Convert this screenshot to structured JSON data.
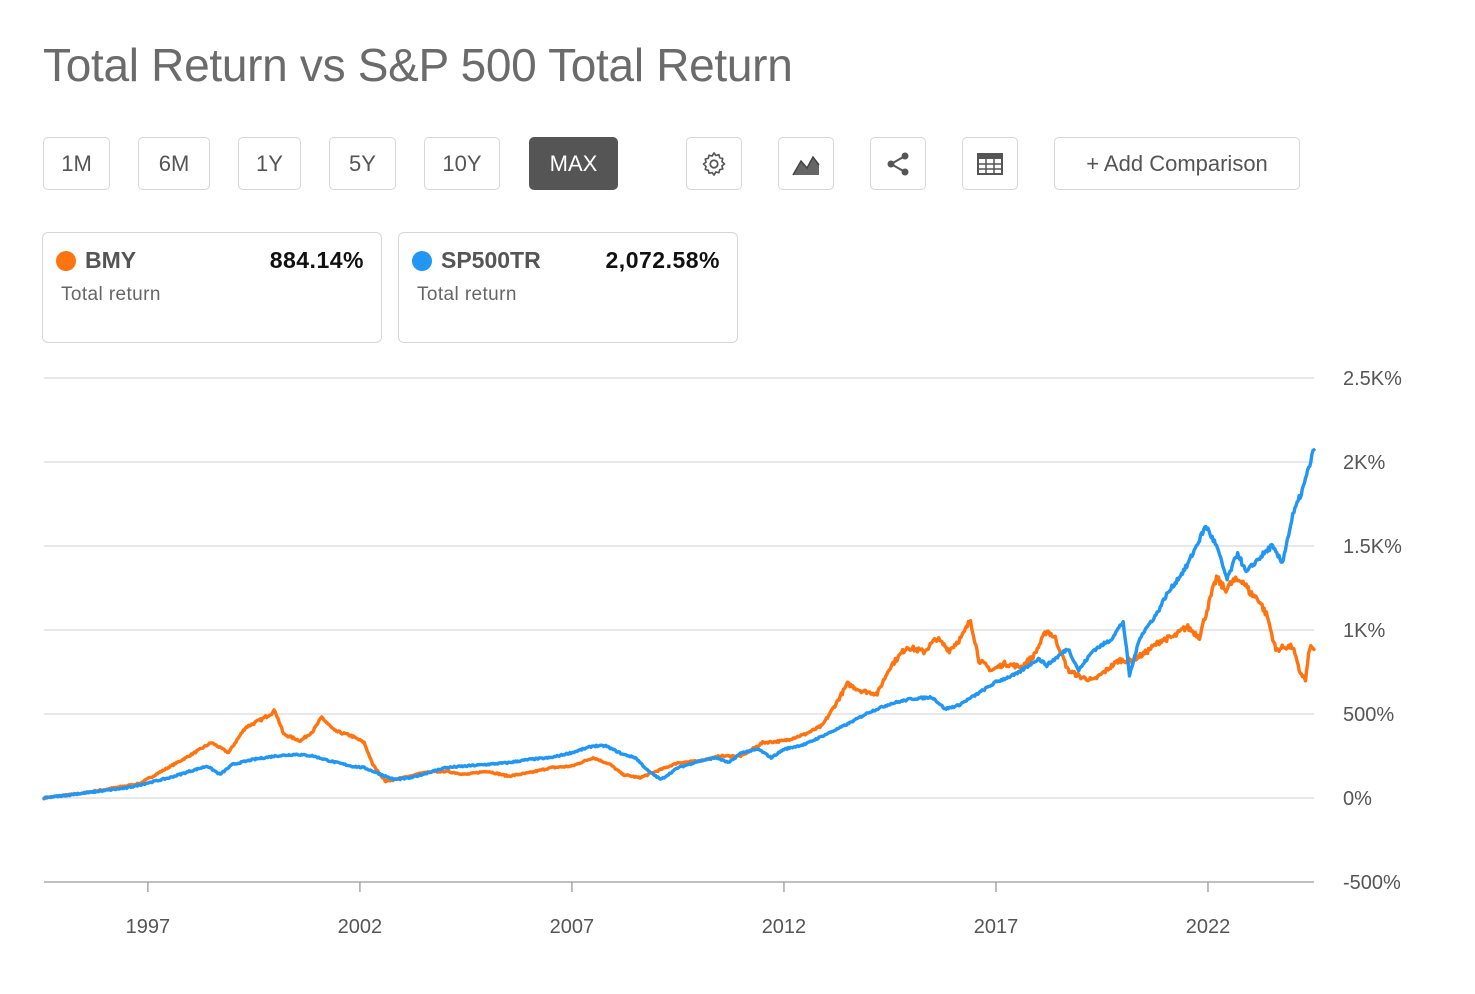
{
  "header": {
    "title": "Total Return vs S&P 500 Total Return"
  },
  "toolbar": {
    "ranges": [
      "1M",
      "6M",
      "1Y",
      "5Y",
      "10Y",
      "MAX"
    ],
    "active_range": "MAX",
    "icons": [
      "gear-icon",
      "area-chart-icon",
      "share-icon",
      "table-icon"
    ],
    "add_comparison_label": "+ Add Comparison"
  },
  "legend_cards": [
    {
      "ticker": "BMY",
      "value": "884.14%",
      "sub": "Total return",
      "color": "#ff7410"
    },
    {
      "ticker": "SP500TR",
      "value": "2,072.58%",
      "sub": "Total return",
      "color": "#2196f3"
    }
  ],
  "chart_data": {
    "type": "line",
    "title": "",
    "xlabel": "",
    "ylabel": "",
    "x_ticks": [
      "1997",
      "2002",
      "2007",
      "2012",
      "2017",
      "2022"
    ],
    "y_ticks": [
      "2.5K%",
      "2K%",
      "1.5K%",
      "1K%",
      "500%",
      "0%",
      "-500%"
    ],
    "ylim": [
      -500,
      2500
    ],
    "xlim": [
      1994.55,
      2024.5
    ],
    "grid": true,
    "series": [
      {
        "name": "BMY",
        "color": "#ff7410",
        "points": [
          [
            1994.55,
            0
          ],
          [
            1995.5,
            30
          ],
          [
            1996.2,
            60
          ],
          [
            1996.8,
            85
          ],
          [
            1997.4,
            170
          ],
          [
            1997.9,
            240
          ],
          [
            1998.5,
            330
          ],
          [
            1998.9,
            270
          ],
          [
            1999.3,
            420
          ],
          [
            1999.7,
            470
          ],
          [
            2000.0,
            520
          ],
          [
            2000.2,
            380
          ],
          [
            2000.6,
            340
          ],
          [
            2000.9,
            400
          ],
          [
            2001.1,
            480
          ],
          [
            2001.4,
            400
          ],
          [
            2001.8,
            370
          ],
          [
            2002.1,
            330
          ],
          [
            2002.3,
            200
          ],
          [
            2002.6,
            100
          ],
          [
            2003.0,
            120
          ],
          [
            2003.5,
            150
          ],
          [
            2004.0,
            160
          ],
          [
            2004.5,
            140
          ],
          [
            2005.0,
            160
          ],
          [
            2005.5,
            130
          ],
          [
            2006.0,
            150
          ],
          [
            2006.5,
            180
          ],
          [
            2007.0,
            190
          ],
          [
            2007.5,
            240
          ],
          [
            2007.9,
            200
          ],
          [
            2008.2,
            140
          ],
          [
            2008.6,
            120
          ],
          [
            2009.0,
            160
          ],
          [
            2009.5,
            210
          ],
          [
            2010.0,
            220
          ],
          [
            2010.5,
            250
          ],
          [
            2011.0,
            250
          ],
          [
            2011.5,
            330
          ],
          [
            2012.0,
            340
          ],
          [
            2012.5,
            380
          ],
          [
            2012.9,
            430
          ],
          [
            2013.2,
            550
          ],
          [
            2013.5,
            680
          ],
          [
            2013.8,
            640
          ],
          [
            2014.2,
            620
          ],
          [
            2014.5,
            780
          ],
          [
            2014.9,
            900
          ],
          [
            2015.3,
            870
          ],
          [
            2015.6,
            950
          ],
          [
            2015.9,
            880
          ],
          [
            2016.2,
            960
          ],
          [
            2016.4,
            1060
          ],
          [
            2016.6,
            820
          ],
          [
            2016.9,
            760
          ],
          [
            2017.2,
            800
          ],
          [
            2017.6,
            780
          ],
          [
            2017.9,
            850
          ],
          [
            2018.2,
            1000
          ],
          [
            2018.4,
            950
          ],
          [
            2018.7,
            760
          ],
          [
            2019.0,
            720
          ],
          [
            2019.3,
            700
          ],
          [
            2019.6,
            760
          ],
          [
            2019.9,
            820
          ],
          [
            2020.2,
            820
          ],
          [
            2020.5,
            860
          ],
          [
            2020.9,
            940
          ],
          [
            2021.2,
            960
          ],
          [
            2021.5,
            1020
          ],
          [
            2021.8,
            960
          ],
          [
            2022.0,
            1140
          ],
          [
            2022.2,
            1310
          ],
          [
            2022.4,
            1240
          ],
          [
            2022.6,
            1290
          ],
          [
            2022.8,
            1300
          ],
          [
            2023.0,
            1220
          ],
          [
            2023.2,
            1180
          ],
          [
            2023.4,
            1080
          ],
          [
            2023.6,
            880
          ],
          [
            2023.8,
            900
          ],
          [
            2024.0,
            900
          ],
          [
            2024.15,
            760
          ],
          [
            2024.3,
            700
          ],
          [
            2024.4,
            900
          ],
          [
            2024.5,
            884
          ]
        ]
      },
      {
        "name": "SP500TR",
        "color": "#2196f3",
        "points": [
          [
            1994.55,
            0
          ],
          [
            1995.5,
            30
          ],
          [
            1996.5,
            60
          ],
          [
            1997.0,
            90
          ],
          [
            1997.5,
            120
          ],
          [
            1998.0,
            160
          ],
          [
            1998.4,
            190
          ],
          [
            1998.7,
            140
          ],
          [
            1999.0,
            200
          ],
          [
            1999.5,
            230
          ],
          [
            2000.0,
            250
          ],
          [
            2000.5,
            260
          ],
          [
            2000.9,
            250
          ],
          [
            2001.3,
            220
          ],
          [
            2001.8,
            190
          ],
          [
            2002.1,
            180
          ],
          [
            2002.5,
            140
          ],
          [
            2002.8,
            110
          ],
          [
            2003.2,
            120
          ],
          [
            2003.6,
            150
          ],
          [
            2004.0,
            180
          ],
          [
            2004.5,
            190
          ],
          [
            2005.0,
            200
          ],
          [
            2005.5,
            210
          ],
          [
            2006.0,
            230
          ],
          [
            2006.5,
            240
          ],
          [
            2007.0,
            270
          ],
          [
            2007.5,
            310
          ],
          [
            2007.8,
            310
          ],
          [
            2008.2,
            260
          ],
          [
            2008.5,
            240
          ],
          [
            2008.8,
            160
          ],
          [
            2009.1,
            110
          ],
          [
            2009.5,
            180
          ],
          [
            2010.0,
            220
          ],
          [
            2010.4,
            240
          ],
          [
            2010.7,
            210
          ],
          [
            2011.0,
            270
          ],
          [
            2011.4,
            290
          ],
          [
            2011.7,
            240
          ],
          [
            2012.0,
            290
          ],
          [
            2012.5,
            320
          ],
          [
            2013.0,
            380
          ],
          [
            2013.5,
            440
          ],
          [
            2014.0,
            510
          ],
          [
            2014.5,
            560
          ],
          [
            2015.0,
            590
          ],
          [
            2015.5,
            600
          ],
          [
            2015.8,
            530
          ],
          [
            2016.1,
            550
          ],
          [
            2016.5,
            610
          ],
          [
            2017.0,
            690
          ],
          [
            2017.5,
            740
          ],
          [
            2018.0,
            830
          ],
          [
            2018.2,
            790
          ],
          [
            2018.7,
            890
          ],
          [
            2018.95,
            760
          ],
          [
            2019.3,
            880
          ],
          [
            2019.7,
            940
          ],
          [
            2020.0,
            1050
          ],
          [
            2020.15,
            730
          ],
          [
            2020.4,
            960
          ],
          [
            2020.8,
            1100
          ],
          [
            2021.0,
            1200
          ],
          [
            2021.5,
            1380
          ],
          [
            2021.95,
            1620
          ],
          [
            2022.2,
            1500
          ],
          [
            2022.45,
            1300
          ],
          [
            2022.7,
            1460
          ],
          [
            2022.9,
            1340
          ],
          [
            2023.1,
            1400
          ],
          [
            2023.5,
            1500
          ],
          [
            2023.75,
            1400
          ],
          [
            2024.0,
            1680
          ],
          [
            2024.25,
            1850
          ],
          [
            2024.5,
            2072.58
          ]
        ]
      }
    ]
  }
}
